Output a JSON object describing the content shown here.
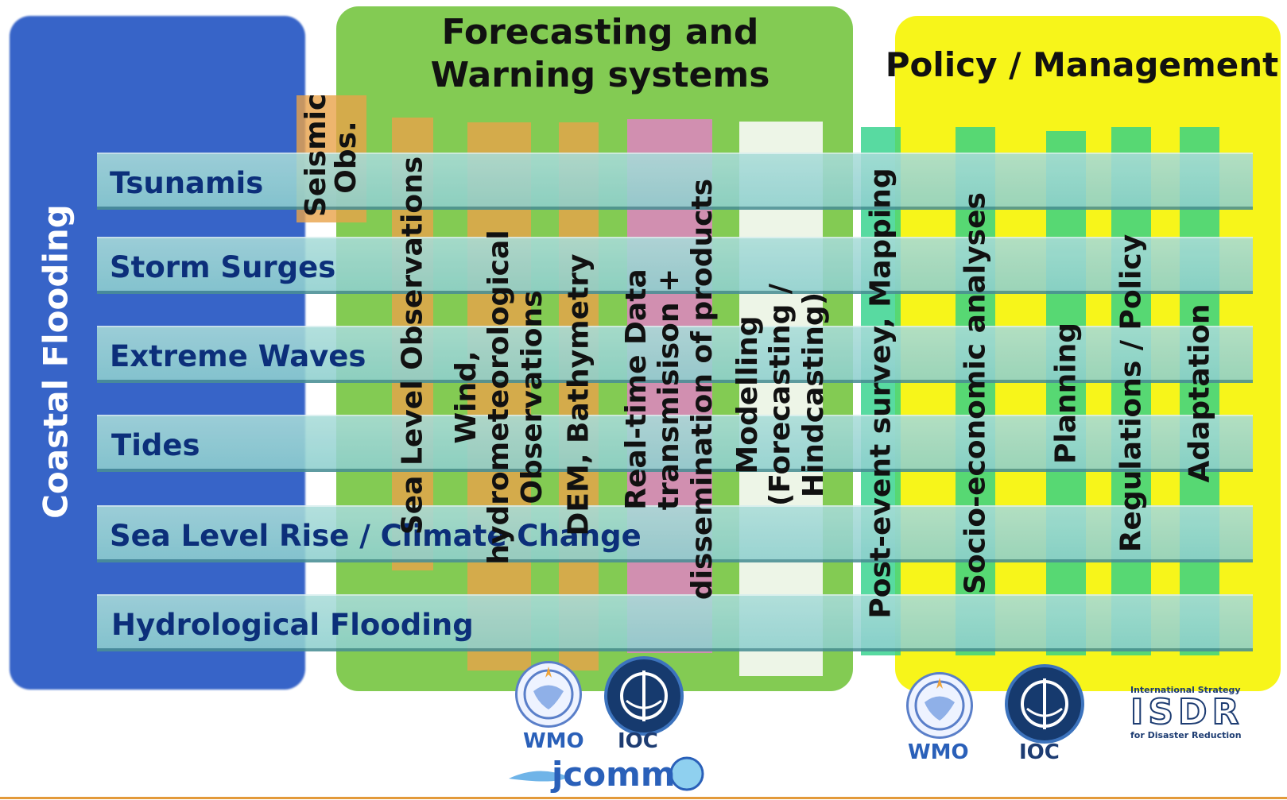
{
  "panels": {
    "coastal": "Coastal Flooding",
    "forecasting": "Forecasting and Warning systems",
    "policy": "Policy / Management"
  },
  "hazards": [
    "Tsunamis",
    "Storm Surges",
    "Extreme Waves",
    "Tides",
    "Sea Level Rise / Climate Change",
    "Hydrological Flooding"
  ],
  "observation_columns": [
    "Seismic Obs.",
    "Sea Level Observations",
    "Wind, hydrometeorological Observations",
    "DEM, Bathymetry",
    "Real-time Data transmisison + dissemination of products",
    "Modelling (Forecasting / Hindcasting)"
  ],
  "policy_columns": [
    "Post-event survey, Mapping",
    "Socio-economic analyses",
    "Planning",
    "Regulations / Policy",
    "Adaptation"
  ],
  "logos": {
    "wmo": "WMO",
    "ioc": "IOC",
    "jcomm": "jcomm",
    "isdr_top": "International Strategy",
    "isdr": "ISDR",
    "isdr_bottom": "for Disaster Reduction"
  },
  "colors": {
    "coastal": "#2f5ec6",
    "forecasting": "#7cc84a",
    "policy": "#f7f51a",
    "hazard_bar": "#9ed6d4",
    "orange_column": "#e8a24a",
    "pink_column": "#e57fc8",
    "white_column": "#f5f8f2",
    "green_column": "#2ed189"
  }
}
